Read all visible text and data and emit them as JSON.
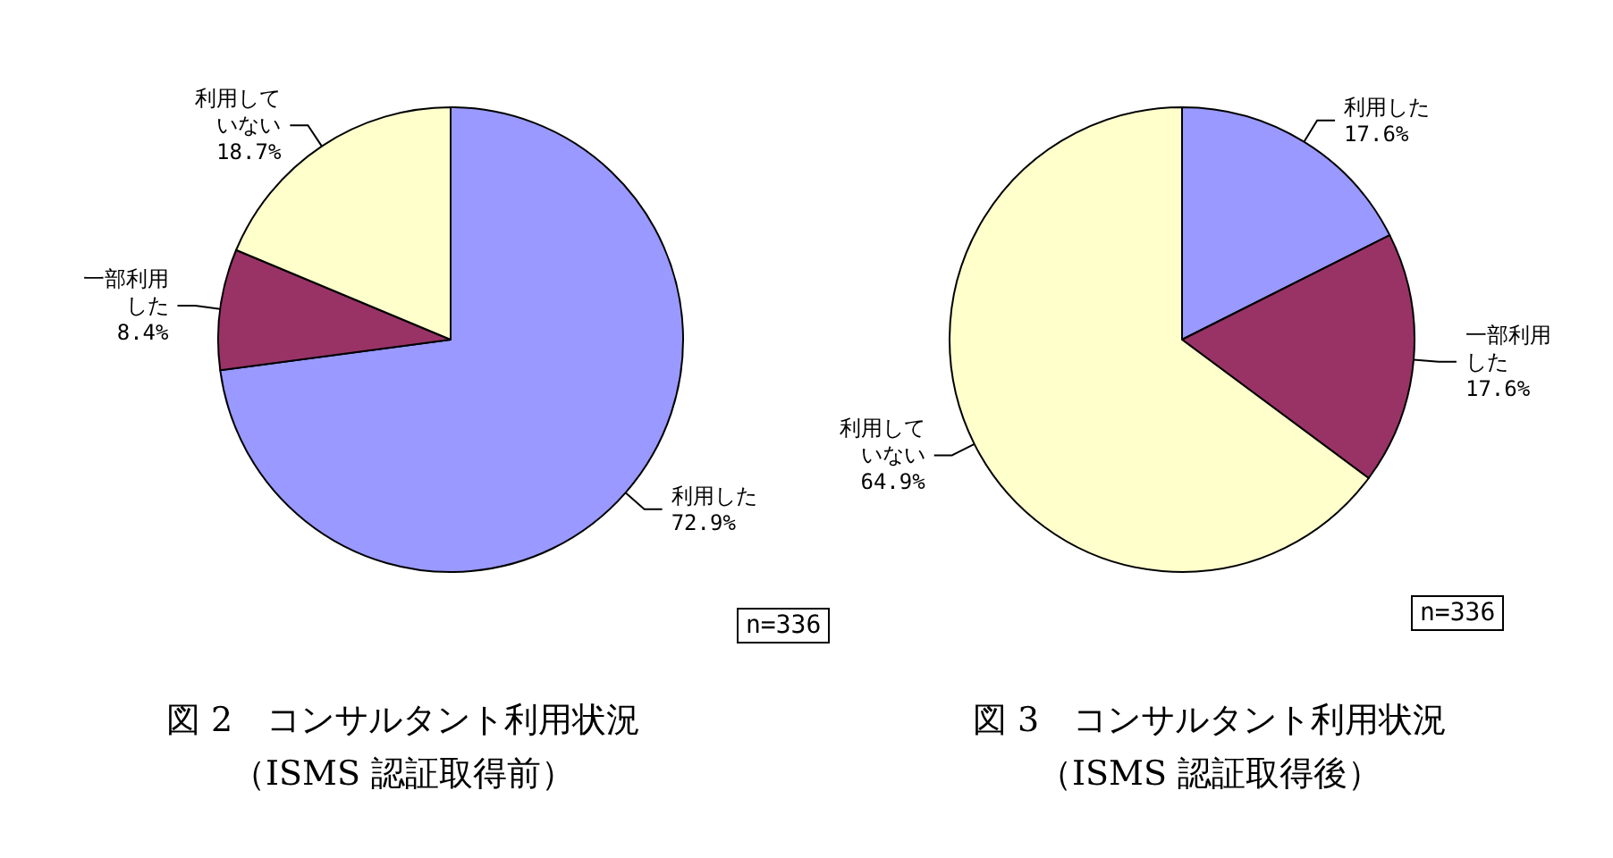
{
  "chart_data": [
    {
      "type": "pie",
      "title": "図 2　コンサルタント利用状況",
      "subtitle": "（ISMS 認証取得前）",
      "categories": [
        "利用した",
        "一部利用した",
        "利用していない"
      ],
      "values": [
        72.9,
        8.4,
        18.7
      ],
      "value_labels": [
        "72.9%",
        "8.4%",
        "18.7%"
      ],
      "colors": [
        "#9999ff",
        "#993366",
        "#ffffcc"
      ],
      "annotations": [
        "n=336"
      ]
    },
    {
      "type": "pie",
      "title": "図 3　コンサルタント利用状況",
      "subtitle": "（ISMS 認証取得後）",
      "categories": [
        "利用した",
        "一部利用した",
        "利用していない"
      ],
      "values": [
        17.6,
        17.6,
        64.9
      ],
      "value_labels": [
        "17.6%",
        "17.6%",
        "64.9%"
      ],
      "colors": [
        "#9999ff",
        "#993366",
        "#ffffcc"
      ],
      "annotations": [
        "n=336"
      ]
    }
  ]
}
